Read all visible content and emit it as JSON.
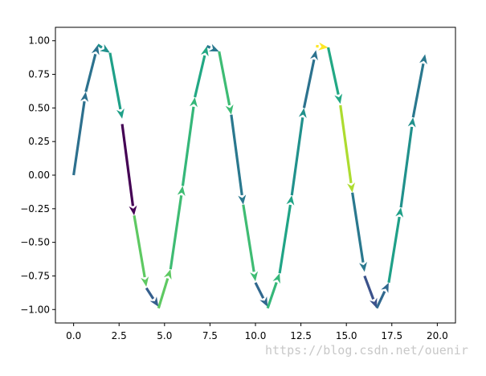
{
  "chart_data": {
    "type": "quiver",
    "title": "",
    "xlabel": "",
    "ylabel": "",
    "xlim": [
      -1.0,
      21.0
    ],
    "ylim": [
      -1.1,
      1.1
    ],
    "grid": false,
    "colormap": "viridis",
    "x_ticks": [
      0,
      2.5,
      5,
      7.5,
      10,
      12.5,
      15,
      17.5,
      20
    ],
    "x_tick_labels": [
      "0.0",
      "2.5",
      "5.0",
      "7.5",
      "10.0",
      "12.5",
      "15.0",
      "17.5",
      "20.0"
    ],
    "y_ticks": [
      1,
      0.75,
      0.5,
      0.25,
      0,
      -0.25,
      -0.5,
      -0.75,
      -1
    ],
    "y_tick_labels": [
      "1.00",
      "0.75",
      "0.50",
      "0.25",
      "0.00",
      "−0.25",
      "−0.50",
      "−0.75",
      "−1.00"
    ],
    "segments": [
      {
        "x0": 0.0,
        "y0": 0.0,
        "x1": 0.67,
        "y1": 0.62,
        "head": true,
        "color": "#2d708e"
      },
      {
        "x0": 0.67,
        "y0": 0.62,
        "x1": 1.33,
        "y1": 0.97,
        "head": true,
        "color": "#2c728e"
      },
      {
        "x0": 1.33,
        "y0": 0.97,
        "x1": 2.0,
        "y1": 0.91,
        "head": true,
        "color": "#21918c"
      },
      {
        "x0": 2.0,
        "y0": 0.91,
        "x1": 2.67,
        "y1": 0.42,
        "head": true,
        "color": "#1fa088"
      },
      {
        "x0": 2.67,
        "y0": 0.38,
        "x1": 3.33,
        "y1": -0.3,
        "head": true,
        "color": "#440154"
      },
      {
        "x0": 3.33,
        "y0": -0.3,
        "x1": 4.0,
        "y1": -0.83,
        "head": true,
        "color": "#5ec962"
      },
      {
        "x0": 4.0,
        "y0": -0.84,
        "x1": 4.67,
        "y1": -0.98,
        "head": true,
        "color": "#355f8d"
      },
      {
        "x0": 4.67,
        "y0": -0.99,
        "x1": 5.33,
        "y1": -0.7,
        "head": true,
        "color": "#5ec962"
      },
      {
        "x0": 5.33,
        "y0": -0.7,
        "x1": 6.0,
        "y1": -0.08,
        "head": true,
        "color": "#3fbc73"
      },
      {
        "x0": 6.0,
        "y0": -0.08,
        "x1": 6.67,
        "y1": 0.58,
        "head": true,
        "color": "#35b779"
      },
      {
        "x0": 6.67,
        "y0": 0.58,
        "x1": 7.33,
        "y1": 0.96,
        "head": true,
        "color": "#22a884"
      },
      {
        "x0": 7.33,
        "y0": 0.96,
        "x1": 8.0,
        "y1": 0.92,
        "head": true,
        "color": "#2a788e"
      },
      {
        "x0": 8.0,
        "y0": 0.92,
        "x1": 8.67,
        "y1": 0.45,
        "head": true,
        "color": "#3dbc74"
      },
      {
        "x0": 8.67,
        "y0": 0.45,
        "x1": 9.33,
        "y1": -0.22,
        "head": true,
        "color": "#2a788e"
      },
      {
        "x0": 9.33,
        "y0": -0.22,
        "x1": 10.0,
        "y1": -0.79,
        "head": true,
        "color": "#3fbc73"
      },
      {
        "x0": 10.0,
        "y0": -0.8,
        "x1": 10.67,
        "y1": -0.98,
        "head": true,
        "color": "#31688e"
      },
      {
        "x0": 10.67,
        "y0": -0.99,
        "x1": 11.33,
        "y1": -0.73,
        "head": true,
        "color": "#35b779"
      },
      {
        "x0": 11.33,
        "y0": -0.73,
        "x1": 12.0,
        "y1": -0.15,
        "head": true,
        "color": "#20a486"
      },
      {
        "x0": 12.0,
        "y0": -0.15,
        "x1": 12.67,
        "y1": 0.5,
        "head": true,
        "color": "#21918c"
      },
      {
        "x0": 12.67,
        "y0": 0.5,
        "x1": 13.33,
        "y1": 0.93,
        "head": true,
        "color": "#2c728e"
      },
      {
        "x0": 13.33,
        "y0": 0.96,
        "x1": 14.0,
        "y1": 0.95,
        "head": true,
        "color": "#fde725"
      },
      {
        "x0": 14.0,
        "y0": 0.95,
        "x1": 14.67,
        "y1": 0.53,
        "head": true,
        "color": "#22a884"
      },
      {
        "x0": 14.67,
        "y0": 0.52,
        "x1": 15.33,
        "y1": -0.13,
        "head": true,
        "color": "#addc30"
      },
      {
        "x0": 15.33,
        "y0": -0.13,
        "x1": 16.0,
        "y1": -0.72,
        "head": true,
        "color": "#2a788e"
      },
      {
        "x0": 16.0,
        "y0": -0.75,
        "x1": 16.67,
        "y1": -0.99,
        "head": true,
        "color": "#3b528b"
      },
      {
        "x0": 16.67,
        "y0": -0.99,
        "x1": 17.33,
        "y1": -0.8,
        "head": true,
        "color": "#31688e"
      },
      {
        "x0": 17.33,
        "y0": -0.8,
        "x1": 18.0,
        "y1": -0.24,
        "head": true,
        "color": "#1fa088"
      },
      {
        "x0": 18.0,
        "y0": -0.24,
        "x1": 18.67,
        "y1": 0.43,
        "head": true,
        "color": "#21918c"
      },
      {
        "x0": 18.67,
        "y0": 0.43,
        "x1": 19.33,
        "y1": 0.9,
        "head": true,
        "color": "#2a788e"
      }
    ]
  },
  "watermark": "https://blog.csdn.net/ouenir"
}
